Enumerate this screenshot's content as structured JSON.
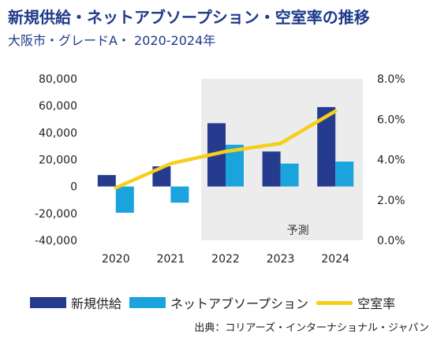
{
  "header": {
    "title": "新規供給・ネットアブソープション・空室率の推移",
    "subtitle": "大阪市・グレードA・ 2020-2024年"
  },
  "colors": {
    "supply": "#253c8e",
    "absorption": "#1aa3dd",
    "vacancy": "#f5cf1b",
    "forecast_bg": "#ececec",
    "title": "#1f3a8a"
  },
  "chart_data": {
    "type": "bar",
    "categories": [
      "2020",
      "2021",
      "2022",
      "2023",
      "2024"
    ],
    "series": [
      {
        "name": "新規供給",
        "type": "bar",
        "axis": "left",
        "values": [
          8500,
          15000,
          47000,
          26000,
          59000
        ]
      },
      {
        "name": "ネットアブソープション",
        "type": "bar",
        "axis": "left",
        "values": [
          -19500,
          -12000,
          31000,
          17000,
          18500
        ]
      },
      {
        "name": "空室率",
        "type": "line",
        "axis": "right",
        "values": [
          2.6,
          3.8,
          4.4,
          4.8,
          6.4
        ]
      }
    ],
    "left_axis": {
      "ylim": [
        -40000,
        80000
      ],
      "ticks": [
        "80,000",
        "60,000",
        "40,000",
        "20,000",
        "0",
        "-20,000",
        "-40,000"
      ]
    },
    "right_axis": {
      "ylim": [
        0,
        8
      ],
      "ticks": [
        "8.0%",
        "6.0%",
        "4.0%",
        "2.0%",
        "0.0%"
      ]
    },
    "forecast": {
      "label": "予測",
      "from_category": "2022",
      "to_category": "2024"
    },
    "legend": {
      "placement": "bottom"
    },
    "grid": false
  },
  "legend_labels": [
    "新規供給",
    "ネットアブソープション",
    "空室率"
  ],
  "source": "出典：コリアーズ・インターナショナル・ジャパン"
}
